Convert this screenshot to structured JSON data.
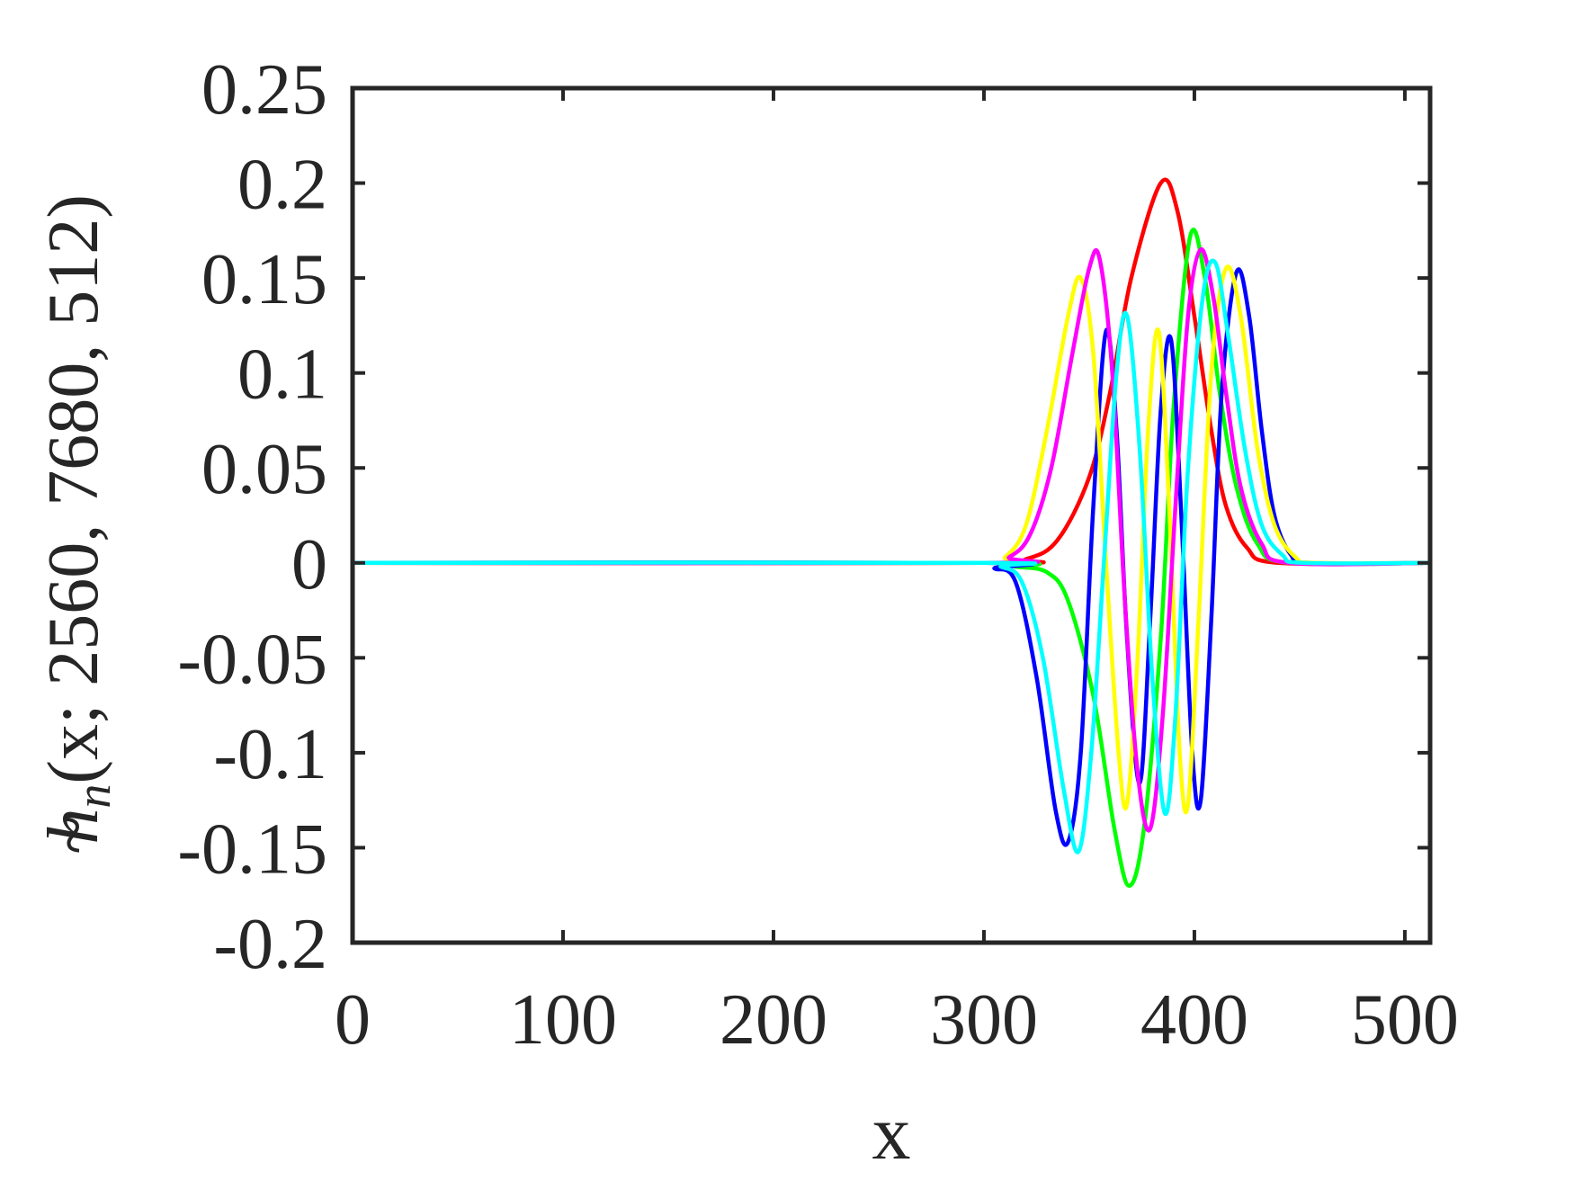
{
  "chart_data": {
    "type": "line",
    "title": "",
    "xlabel": "x",
    "ylabel": {
      "symbol": "h",
      "accent": "~",
      "subscript": "n",
      "args": "(x; 2560, 7680, 512)"
    },
    "xlim": [
      0,
      512
    ],
    "ylim": [
      -0.2,
      0.25
    ],
    "xticks": [
      0,
      100,
      200,
      300,
      400,
      500
    ],
    "xtick_labels": [
      "0",
      "100",
      "200",
      "300",
      "400",
      "500"
    ],
    "yticks": [
      -0.2,
      -0.15,
      -0.1,
      -0.05,
      0,
      0.05,
      0.1,
      0.15,
      0.2,
      0.25
    ],
    "ytick_labels": [
      "-0.2",
      "-0.15",
      "-0.1",
      "-0.05",
      "0",
      "0.05",
      "0.1",
      "0.15",
      "0.2",
      "0.25"
    ],
    "grid": false,
    "legend": "none",
    "series": [
      {
        "color": "#ff0000",
        "points": [
          [
            0,
            0
          ],
          [
            300,
            0
          ],
          [
            320,
            0.002
          ],
          [
            335,
            0.012
          ],
          [
            350,
            0.045
          ],
          [
            360,
            0.09
          ],
          [
            370,
            0.15
          ],
          [
            384,
            0.2
          ],
          [
            392,
            0.185
          ],
          [
            400,
            0.13
          ],
          [
            408,
            0.07
          ],
          [
            415,
            0.03
          ],
          [
            425,
            0.008
          ],
          [
            440,
            0
          ],
          [
            512,
            0
          ]
        ]
      },
      {
        "color": "#00ff00",
        "points": [
          [
            0,
            0
          ],
          [
            300,
            0
          ],
          [
            315,
            -0.002
          ],
          [
            330,
            -0.005
          ],
          [
            340,
            -0.02
          ],
          [
            352,
            -0.07
          ],
          [
            362,
            -0.14
          ],
          [
            369,
            -0.17
          ],
          [
            376,
            -0.14
          ],
          [
            384,
            -0.04
          ],
          [
            390,
            0.08
          ],
          [
            398,
            0.172
          ],
          [
            405,
            0.15
          ],
          [
            412,
            0.09
          ],
          [
            420,
            0.04
          ],
          [
            430,
            0.01
          ],
          [
            445,
            0
          ],
          [
            512,
            0
          ]
        ]
      },
      {
        "color": "#0000ff",
        "points": [
          [
            0,
            0
          ],
          [
            300,
            0
          ],
          [
            305,
            -0.003
          ],
          [
            315,
            -0.01
          ],
          [
            325,
            -0.06
          ],
          [
            334,
            -0.13
          ],
          [
            340,
            -0.147
          ],
          [
            346,
            -0.1
          ],
          [
            352,
            0.03
          ],
          [
            358,
            0.122
          ],
          [
            363,
            0.07
          ],
          [
            368,
            -0.04
          ],
          [
            374,
            -0.116
          ],
          [
            379,
            -0.03
          ],
          [
            384,
            0.08
          ],
          [
            389,
            0.117
          ],
          [
            394,
            0.02
          ],
          [
            399,
            -0.1
          ],
          [
            403,
            -0.125
          ],
          [
            408,
            -0.03
          ],
          [
            413,
            0.09
          ],
          [
            420,
            0.153
          ],
          [
            426,
            0.13
          ],
          [
            432,
            0.07
          ],
          [
            438,
            0.025
          ],
          [
            446,
            0.004
          ],
          [
            455,
            0
          ],
          [
            512,
            0
          ]
        ]
      },
      {
        "color": "#ffff00",
        "points": [
          [
            0,
            0
          ],
          [
            300,
            0
          ],
          [
            310,
            0.003
          ],
          [
            320,
            0.02
          ],
          [
            330,
            0.07
          ],
          [
            340,
            0.13
          ],
          [
            346,
            0.15
          ],
          [
            352,
            0.11
          ],
          [
            358,
            0.0
          ],
          [
            364,
            -0.1
          ],
          [
            368,
            -0.127
          ],
          [
            373,
            -0.05
          ],
          [
            378,
            0.07
          ],
          [
            383,
            0.122
          ],
          [
            388,
            0.03
          ],
          [
            393,
            -0.1
          ],
          [
            397,
            -0.127
          ],
          [
            402,
            -0.03
          ],
          [
            408,
            0.1
          ],
          [
            415,
            0.155
          ],
          [
            422,
            0.13
          ],
          [
            430,
            0.06
          ],
          [
            438,
            0.02
          ],
          [
            448,
            0.003
          ],
          [
            458,
            0
          ],
          [
            512,
            0
          ]
        ]
      },
      {
        "color": "#ff00ff",
        "points": [
          [
            0,
            0
          ],
          [
            300,
            0
          ],
          [
            312,
            0.003
          ],
          [
            322,
            0.015
          ],
          [
            332,
            0.05
          ],
          [
            342,
            0.11
          ],
          [
            350,
            0.155
          ],
          [
            355,
            0.16
          ],
          [
            361,
            0.1
          ],
          [
            367,
            -0.02
          ],
          [
            373,
            -0.11
          ],
          [
            379,
            -0.14
          ],
          [
            385,
            -0.08
          ],
          [
            391,
            0.03
          ],
          [
            397,
            0.13
          ],
          [
            403,
            0.165
          ],
          [
            409,
            0.14
          ],
          [
            415,
            0.09
          ],
          [
            422,
            0.04
          ],
          [
            432,
            0.01
          ],
          [
            445,
            0
          ],
          [
            512,
            0
          ]
        ]
      },
      {
        "color": "#00ffff",
        "points": [
          [
            0,
            0
          ],
          [
            300,
            0
          ],
          [
            308,
            -0.002
          ],
          [
            318,
            -0.01
          ],
          [
            328,
            -0.05
          ],
          [
            338,
            -0.12
          ],
          [
            345,
            -0.152
          ],
          [
            351,
            -0.1
          ],
          [
            357,
            0.0
          ],
          [
            363,
            0.1
          ],
          [
            368,
            0.13
          ],
          [
            374,
            0.06
          ],
          [
            380,
            -0.06
          ],
          [
            386,
            -0.132
          ],
          [
            391,
            -0.08
          ],
          [
            397,
            0.05
          ],
          [
            404,
            0.14
          ],
          [
            410,
            0.158
          ],
          [
            416,
            0.12
          ],
          [
            424,
            0.06
          ],
          [
            432,
            0.02
          ],
          [
            442,
            0.004
          ],
          [
            452,
            0
          ],
          [
            512,
            0
          ]
        ]
      }
    ]
  }
}
